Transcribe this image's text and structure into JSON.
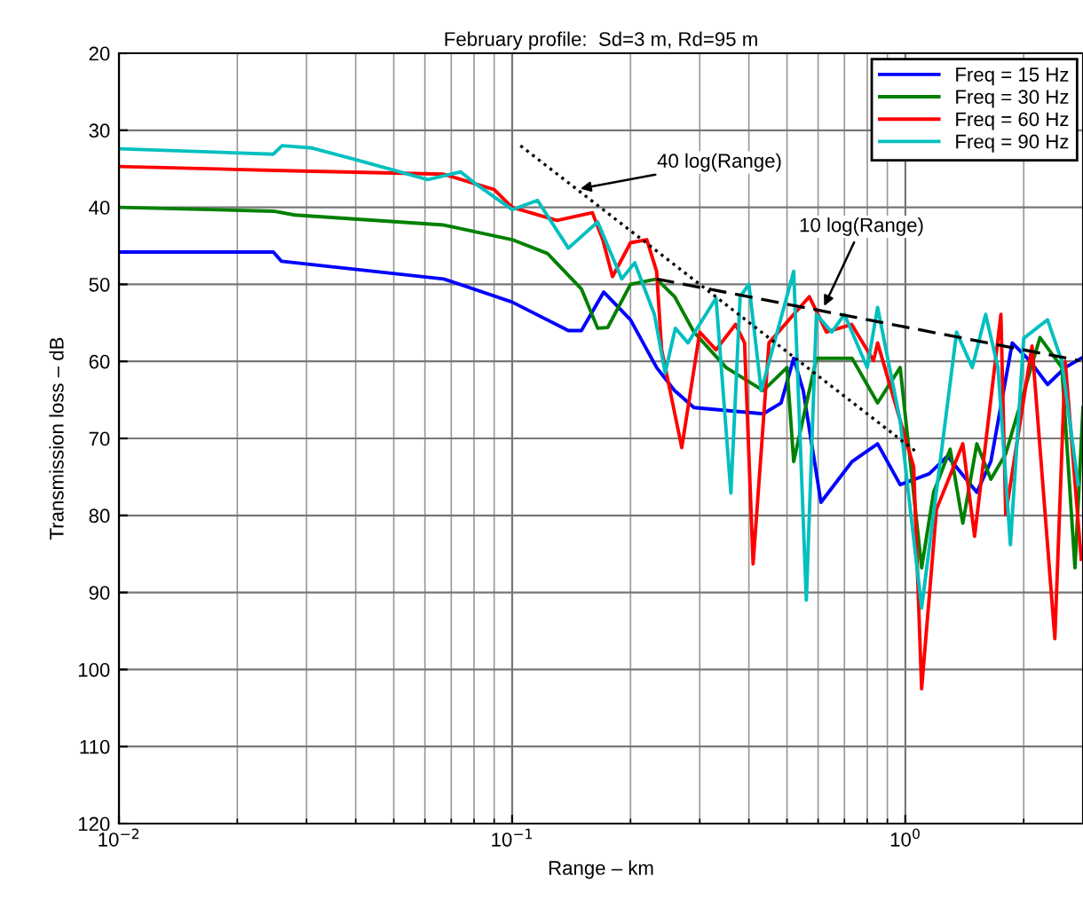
{
  "chart_data": {
    "type": "line",
    "title": "February profile:  Sd=3 m, Rd=95 m",
    "xlabel": "Range – km",
    "ylabel": "Transmission loss – dB",
    "log": "x",
    "grid": true,
    "legend": "top right",
    "line_style": "solid",
    "marker": "none",
    "xlim": [
      0.01,
      2.83
    ],
    "xticks": [
      {
        "value": 0.01,
        "label": "10$^{−2}$"
      },
      {
        "value": 0.1,
        "label": "10$^{−1}$"
      },
      {
        "value": 1,
        "label": "10$^{0}$"
      }
    ],
    "ylim": [
      120,
      20
    ],
    "yticks": [
      20,
      30,
      40,
      50,
      60,
      70,
      80,
      90,
      100,
      110,
      120
    ],
    "series": [
      {
        "name": "Freq = 15 Hz",
        "color": "#0000ff",
        "x": [
          0.01,
          0.0247,
          0.0259,
          0.067,
          0.1,
          0.139,
          0.15,
          0.171,
          0.2,
          0.233,
          0.259,
          0.29,
          0.435,
          0.483,
          0.52,
          0.55,
          0.61,
          0.732,
          0.85,
          0.97,
          1.15,
          1.28,
          1.52,
          1.65,
          1.87,
          2.07,
          2.3,
          2.55,
          2.8
        ],
        "values": [
          45.8,
          45.8,
          47,
          49.3,
          52.3,
          56,
          56,
          51,
          54.6,
          60.8,
          63.8,
          66,
          66.8,
          65.4,
          59.6,
          63.8,
          78.3,
          73,
          70.7,
          76,
          74.6,
          72.3,
          77,
          73,
          57.6,
          59.9,
          63,
          60.8,
          59.6
        ]
      },
      {
        "name": "Freq = 30 Hz",
        "color": "#008000",
        "x": [
          0.01,
          0.0247,
          0.028,
          0.067,
          0.1,
          0.123,
          0.15,
          0.165,
          0.175,
          0.2,
          0.233,
          0.259,
          0.29,
          0.35,
          0.435,
          0.5,
          0.52,
          0.594,
          0.732,
          0.85,
          0.97,
          1.1,
          1.18,
          1.3,
          1.4,
          1.52,
          1.65,
          1.8,
          2.2,
          2.5,
          2.7,
          2.83
        ],
        "values": [
          40,
          40.5,
          41,
          42.3,
          44.2,
          46,
          50.6,
          55.7,
          55.6,
          50,
          49.3,
          51.6,
          56.2,
          60.8,
          63.8,
          60.8,
          73,
          59.6,
          59.6,
          65.4,
          60.8,
          86.8,
          77,
          71.4,
          81,
          70.7,
          75.3,
          72,
          56.9,
          60.8,
          86.8,
          66
        ]
      },
      {
        "name": "Freq = 60 Hz",
        "color": "#ff0000",
        "x": [
          0.01,
          0.0247,
          0.067,
          0.09,
          0.1,
          0.13,
          0.16,
          0.17,
          0.18,
          0.2,
          0.22,
          0.233,
          0.24,
          0.27,
          0.3,
          0.33,
          0.37,
          0.39,
          0.41,
          0.45,
          0.52,
          0.57,
          0.63,
          0.73,
          0.83,
          0.85,
          1.05,
          1.1,
          1.2,
          1.4,
          1.5,
          1.75,
          1.8,
          2.1,
          2.4,
          2.55,
          2.8
        ],
        "values": [
          34.7,
          35.2,
          35.7,
          37.7,
          40,
          41.7,
          40.7,
          44.2,
          49,
          44.6,
          44.2,
          48.3,
          58.5,
          71.2,
          56.2,
          58.5,
          55.2,
          57.6,
          86.3,
          57.6,
          53.9,
          51.6,
          56.2,
          55.2,
          59.9,
          57.6,
          73.7,
          102.5,
          79.2,
          70.7,
          82.7,
          53.9,
          79.9,
          58,
          96,
          60,
          85.7
        ]
      },
      {
        "name": "Freq = 90 Hz",
        "color": "#00bfbf",
        "x": [
          0.01,
          0.0247,
          0.026,
          0.031,
          0.04,
          0.061,
          0.074,
          0.08,
          0.1,
          0.116,
          0.139,
          0.165,
          0.19,
          0.205,
          0.23,
          0.245,
          0.26,
          0.28,
          0.33,
          0.36,
          0.38,
          0.4,
          0.43,
          0.52,
          0.56,
          0.594,
          0.65,
          0.7,
          0.8,
          0.85,
          0.97,
          1.1,
          1.35,
          1.48,
          1.6,
          1.72,
          1.85,
          2.0,
          2.3,
          2.5,
          2.75
        ],
        "values": [
          32.4,
          33.1,
          32,
          32.3,
          33.8,
          36.4,
          35.4,
          36.8,
          40.3,
          39.1,
          45.3,
          41.9,
          49.3,
          47.2,
          53.9,
          61.5,
          55.7,
          57.6,
          51.8,
          77.1,
          51.6,
          50,
          63.8,
          48.3,
          91,
          53.9,
          56.2,
          53.9,
          60.8,
          53,
          67.7,
          92,
          56.2,
          60.8,
          53.9,
          60.8,
          83.8,
          57,
          54.6,
          60,
          76
        ]
      },
      {
        "type": "line",
        "color": "#000000",
        "line_style": "dotted",
        "x": [
          0.105,
          1.07
        ],
        "values": [
          32,
          71.8
        ]
      },
      {
        "type": "line",
        "color": "#000000",
        "line_style": "dashed",
        "x": [
          0.233,
          2.77
        ],
        "values": [
          49.3,
          59.9
        ]
      }
    ],
    "annotations": [
      {
        "text": "40 log(Range)",
        "x": 0.145,
        "y": 37.7
      },
      {
        "text": "10 log(Range)",
        "x": 0.614,
        "y": 53.4
      }
    ]
  }
}
